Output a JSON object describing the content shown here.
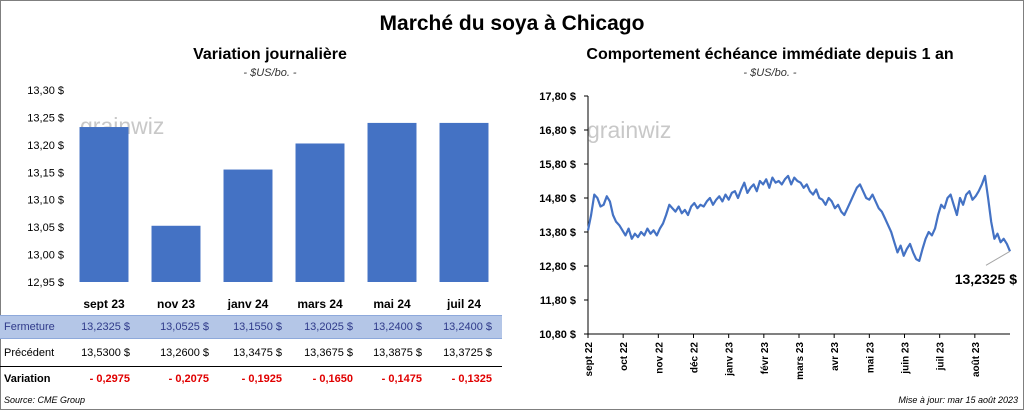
{
  "title": "Marché du soya à Chicago",
  "left_title": "Variation journalière",
  "left_unit": "- $US/bo. -",
  "right_title": "Comportement échéance immédiate depuis 1 an",
  "right_unit": "- $US/bo. -",
  "watermark": "grainwiz",
  "source": "Source: CME Group",
  "updated": "Mise à jour: mar 15 août 2023",
  "colors": {
    "bar": "#4472c4",
    "line": "#4472c4",
    "fermeture_bg": "#b4c6e7",
    "negative": "#e00000"
  },
  "table": {
    "fermeture_label": "Fermeture",
    "fermeture": [
      "13,2325 $",
      "13,0525 $",
      "13,1550 $",
      "13,2025 $",
      "13,2400 $",
      "13,2400 $"
    ],
    "precedent_label": "Précédent",
    "precedent": [
      "13,5300 $",
      "13,2600 $",
      "13,3475 $",
      "13,3675 $",
      "13,3875 $",
      "13,3725 $"
    ],
    "variation_label": "Variation",
    "variation": [
      "- 0,2975",
      "- 0,2075",
      "- 0,1925",
      "- 0,1650",
      "- 0,1475",
      "- 0,1325"
    ]
  },
  "chart_data": [
    {
      "type": "bar",
      "categories": [
        "sept 23",
        "nov 23",
        "janv 24",
        "mars 24",
        "mai 24",
        "juil 24"
      ],
      "values": [
        13.2325,
        13.0525,
        13.155,
        13.2025,
        13.24,
        13.24
      ],
      "ylim": [
        12.95,
        13.3
      ],
      "yticks": [
        12.95,
        13.0,
        13.05,
        13.1,
        13.15,
        13.2,
        13.25,
        13.3
      ],
      "ytick_labels": [
        "12,95 $",
        "13,00 $",
        "13,05 $",
        "13,10 $",
        "13,15 $",
        "13,20 $",
        "13,25 $",
        "13,30 $"
      ],
      "grid": false
    },
    {
      "type": "line",
      "x_labels": [
        "sept 22",
        "oct 22",
        "nov 22",
        "déc 22",
        "janv 23",
        "févr 23",
        "mars 23",
        "avr 23",
        "mai 23",
        "juin 23",
        "juil 23",
        "août 23"
      ],
      "ylim": [
        10.8,
        17.8
      ],
      "yticks": [
        10.8,
        11.8,
        12.8,
        13.8,
        14.8,
        15.8,
        16.8,
        17.8
      ],
      "ytick_labels": [
        "10,80 $",
        "11,80 $",
        "12,80 $",
        "13,80 $",
        "14,80 $",
        "15,80 $",
        "16,80 $",
        "17,80 $"
      ],
      "last_value_label": "13,2325 $",
      "grid": false,
      "values": [
        13.85,
        14.3,
        14.9,
        14.8,
        14.55,
        14.6,
        14.85,
        14.7,
        14.3,
        14.1,
        14.0,
        13.85,
        13.7,
        13.9,
        13.6,
        13.75,
        13.65,
        13.8,
        13.7,
        13.9,
        13.75,
        13.85,
        13.7,
        13.9,
        14.05,
        14.3,
        14.6,
        14.5,
        14.4,
        14.55,
        14.35,
        14.45,
        14.3,
        14.55,
        14.65,
        14.5,
        14.6,
        14.55,
        14.7,
        14.8,
        14.6,
        14.75,
        14.85,
        14.7,
        14.9,
        14.75,
        14.95,
        15.0,
        14.8,
        15.05,
        15.25,
        14.95,
        15.1,
        15.2,
        15.0,
        15.3,
        15.2,
        15.35,
        15.1,
        15.4,
        15.25,
        15.3,
        15.2,
        15.35,
        15.45,
        15.2,
        15.4,
        15.3,
        15.25,
        15.1,
        15.2,
        15.0,
        14.9,
        15.05,
        14.8,
        14.75,
        14.6,
        14.8,
        14.7,
        14.5,
        14.6,
        14.4,
        14.3,
        14.5,
        14.7,
        14.9,
        15.1,
        15.2,
        15.0,
        14.8,
        14.75,
        14.9,
        14.7,
        14.5,
        14.4,
        14.2,
        14.0,
        13.8,
        13.5,
        13.2,
        13.4,
        13.1,
        13.3,
        13.45,
        13.2,
        13.0,
        12.95,
        13.3,
        13.6,
        13.8,
        13.7,
        13.9,
        14.3,
        14.6,
        14.5,
        14.8,
        14.9,
        14.6,
        14.3,
        14.8,
        14.6,
        14.9,
        15.0,
        14.75,
        14.85,
        15.0,
        15.2,
        15.45,
        14.8,
        14.1,
        13.6,
        13.75,
        13.5,
        13.6,
        13.45,
        13.2325
      ]
    }
  ]
}
